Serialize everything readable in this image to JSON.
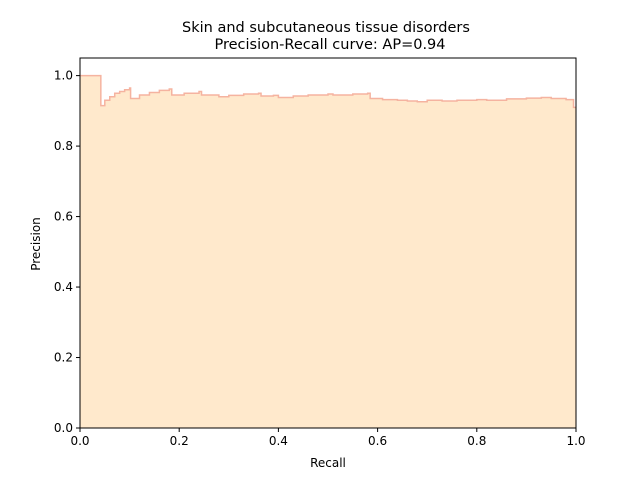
{
  "figure": {
    "title_line1": "Skin and subcutaneous tissue disorders",
    "title_line2": "Precision-Recall curve: AP=0.94"
  },
  "chart_data": {
    "type": "area",
    "title": "Skin and subcutaneous tissue disorders\nPrecision-Recall curve: AP=0.94",
    "xlabel": "Recall",
    "ylabel": "Precision",
    "xlim": [
      0.0,
      1.0
    ],
    "ylim": [
      0.0,
      1.05
    ],
    "xticks": [
      "0.0",
      "0.2",
      "0.4",
      "0.6",
      "0.8",
      "1.0"
    ],
    "yticks": [
      "0.0",
      "0.2",
      "0.4",
      "0.6",
      "0.8",
      "1.0"
    ],
    "grid": false,
    "legend": "none",
    "step": "post",
    "fill_color": "#ffe9cc",
    "line_color": "#f5b3a0",
    "series": [
      {
        "recall": [
          0.0,
          0.04,
          0.042,
          0.05,
          0.06,
          0.07,
          0.08,
          0.09,
          0.1,
          0.102,
          0.12,
          0.14,
          0.16,
          0.18,
          0.185,
          0.21,
          0.24,
          0.245,
          0.28,
          0.3,
          0.33,
          0.36,
          0.365,
          0.39,
          0.4,
          0.43,
          0.46,
          0.5,
          0.51,
          0.55,
          0.58,
          0.585,
          0.61,
          0.64,
          0.66,
          0.68,
          0.7,
          0.73,
          0.76,
          0.8,
          0.82,
          0.86,
          0.9,
          0.93,
          0.95,
          0.98,
          0.995,
          1.0
        ],
        "precision": [
          1.0,
          1.0,
          0.915,
          0.93,
          0.94,
          0.95,
          0.955,
          0.96,
          0.965,
          0.935,
          0.945,
          0.952,
          0.958,
          0.962,
          0.945,
          0.95,
          0.955,
          0.945,
          0.94,
          0.944,
          0.948,
          0.95,
          0.942,
          0.944,
          0.938,
          0.942,
          0.945,
          0.948,
          0.945,
          0.948,
          0.95,
          0.935,
          0.932,
          0.93,
          0.928,
          0.926,
          0.93,
          0.928,
          0.93,
          0.932,
          0.93,
          0.934,
          0.936,
          0.938,
          0.935,
          0.932,
          0.91,
          0.91
        ]
      }
    ]
  }
}
